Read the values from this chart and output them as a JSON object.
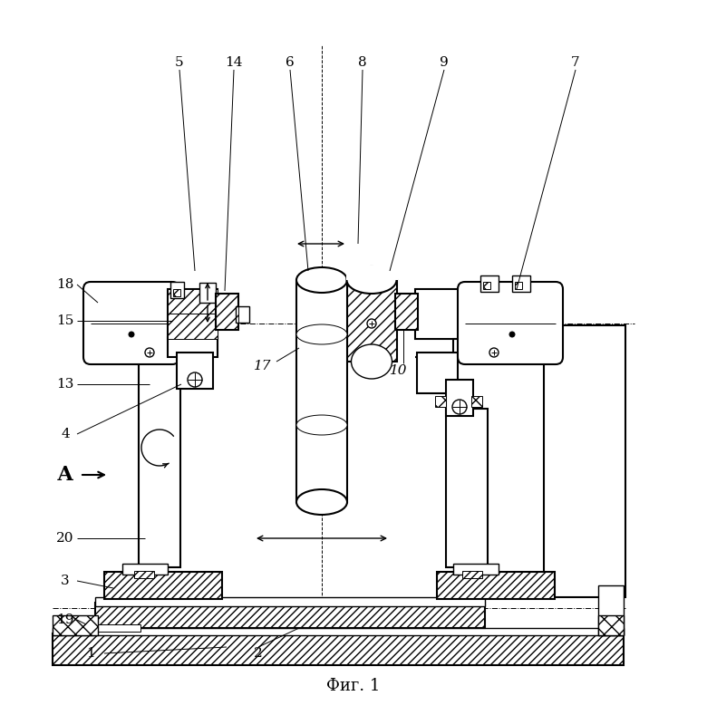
{
  "bg": "#ffffff",
  "lc": "#000000",
  "title": "Фиг. 1",
  "A_label": "А"
}
